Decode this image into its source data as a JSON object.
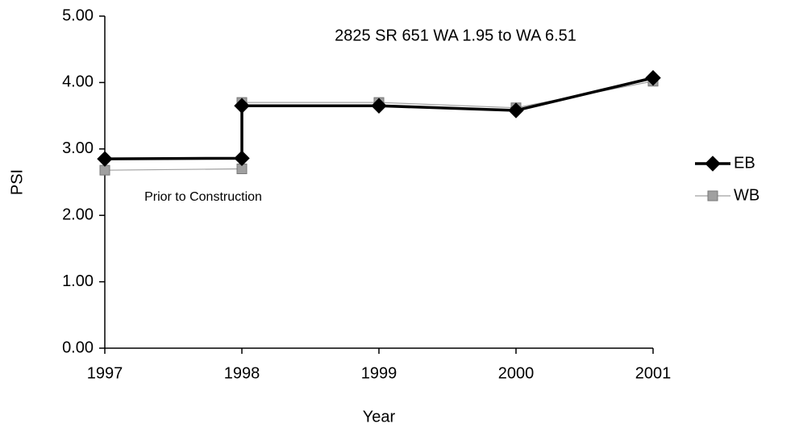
{
  "chart_data": {
    "type": "line",
    "title": "2825 SR 651 WA 1.95 to WA 6.51",
    "annotation": "Prior to Construction",
    "x_label": "Year",
    "y_label": "PSI",
    "x": [
      1997,
      1998,
      1998,
      1999,
      2000,
      2001
    ],
    "series": [
      {
        "name": "EB",
        "color": "#000000",
        "marker": "diamond",
        "values": [
          2.85,
          2.86,
          3.65,
          3.65,
          3.58,
          4.07
        ]
      },
      {
        "name": "WB",
        "color": "#a0a0a0",
        "marker": "square",
        "values": [
          2.68,
          2.7,
          3.7,
          3.7,
          3.62,
          4.02
        ]
      }
    ],
    "xlim": [
      1997,
      2001
    ],
    "xticks": [
      1997,
      1998,
      1999,
      2000,
      2001
    ],
    "ylim": [
      0,
      5
    ],
    "yticks": [
      {
        "value": 0,
        "label": "0.00"
      },
      {
        "value": 1,
        "label": "1.00"
      },
      {
        "value": 2,
        "label": "2.00"
      },
      {
        "value": 3,
        "label": "3.00"
      },
      {
        "value": 4,
        "label": "4.00"
      },
      {
        "value": 5,
        "label": "5.00"
      }
    ],
    "grid": false,
    "legend": "right"
  }
}
